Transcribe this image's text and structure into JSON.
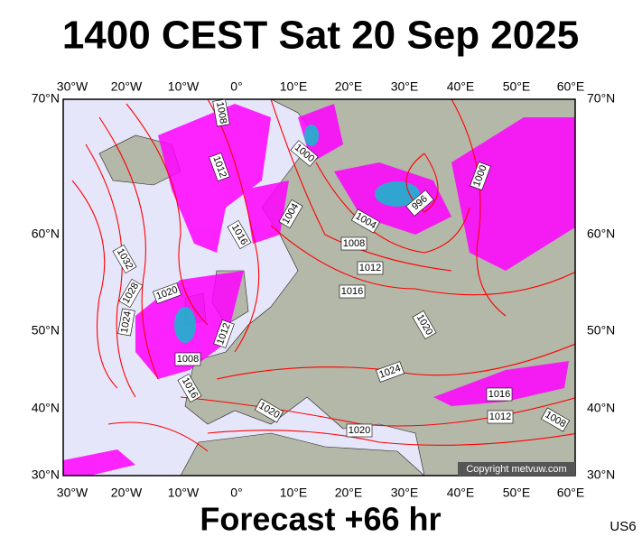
{
  "header": {
    "title": "1400 CEST Sat 20 Sep 2025"
  },
  "map": {
    "lon_labels": [
      "30°W",
      "20°W",
      "10°W",
      "0°",
      "10°E",
      "20°E",
      "30°E",
      "40°E",
      "50°E",
      "60°E"
    ],
    "lat_labels": [
      "70°N",
      "60°N",
      "50°N",
      "40°N",
      "30°N"
    ],
    "isobar_labels": [
      "1008",
      "1012",
      "1000",
      "1004",
      "996",
      "1004",
      "1008",
      "1012",
      "1016",
      "1016",
      "1000",
      "1032",
      "1028",
      "1020",
      "1024",
      "1012",
      "1008",
      "1016",
      "1020",
      "1024",
      "1016",
      "1012",
      "1008",
      "1020",
      "1020"
    ],
    "copyright": "Copyright metvuw.com"
  },
  "footer": {
    "forecast": "Forecast +66 hr",
    "model": "US6"
  }
}
